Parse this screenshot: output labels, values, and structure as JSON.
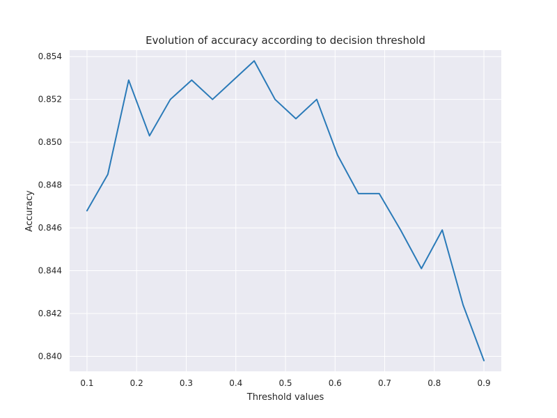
{
  "chart_data": {
    "type": "line",
    "title": "Evolution of accuracy according to decision threshold",
    "xlabel": "Threshold values",
    "ylabel": "Accuracy",
    "xlim": [
      0.065,
      0.935
    ],
    "ylim": [
      0.8393,
      0.8543
    ],
    "grid": true,
    "x_ticks": [
      0.1,
      0.2,
      0.3,
      0.4,
      0.5,
      0.6,
      0.7,
      0.8,
      0.9
    ],
    "y_ticks": [
      0.84,
      0.842,
      0.844,
      0.846,
      0.848,
      0.85,
      0.852,
      0.854
    ],
    "x_tick_labels": [
      "0.1",
      "0.2",
      "0.3",
      "0.4",
      "0.5",
      "0.6",
      "0.7",
      "0.8",
      "0.9"
    ],
    "y_tick_labels": [
      "0.840",
      "0.842",
      "0.844",
      "0.846",
      "0.848",
      "0.850",
      "0.852",
      "0.854"
    ],
    "series": [
      {
        "color": "#2a7ab8",
        "x": [
          0.1,
          0.142,
          0.184,
          0.226,
          0.268,
          0.311,
          0.353,
          0.395,
          0.437,
          0.479,
          0.521,
          0.563,
          0.605,
          0.647,
          0.689,
          0.732,
          0.774,
          0.816,
          0.858,
          0.9
        ],
        "y": [
          0.8468,
          0.8485,
          0.8529,
          0.8503,
          0.852,
          0.8529,
          0.852,
          0.8529,
          0.8538,
          0.852,
          0.8511,
          0.852,
          0.8494,
          0.8476,
          0.8476,
          0.8459,
          0.8441,
          0.8459,
          0.8424,
          0.8398
        ]
      }
    ]
  }
}
